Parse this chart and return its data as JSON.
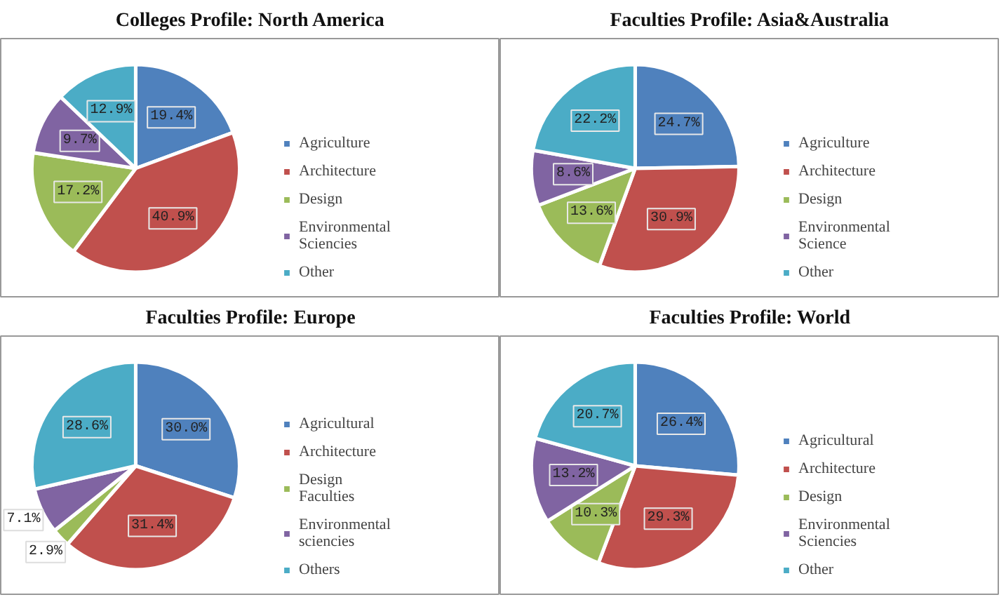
{
  "chart_data": [
    {
      "type": "pie",
      "title": "Colleges Profile: North America",
      "categories": [
        "Agriculture",
        "Architecture",
        "Design",
        "Environmental Sciencies",
        "Other"
      ],
      "values": [
        19.4,
        40.9,
        17.2,
        9.7,
        12.9
      ],
      "value_labels": [
        "19.4%",
        "40.9%",
        "17.2%",
        "9.7%",
        "12.9%"
      ],
      "colors": [
        "#4f81bd",
        "#c0504d",
        "#9bbb59",
        "#8064a2",
        "#4bacc6"
      ],
      "legend": "right"
    },
    {
      "type": "pie",
      "title": "Faculties Profile: Asia&Australia",
      "categories": [
        "Agriculture",
        "Architecture",
        "Design",
        "Environmental Science",
        "Other"
      ],
      "values": [
        24.7,
        30.9,
        13.6,
        8.6,
        22.2
      ],
      "value_labels": [
        "24.7%",
        "30.9%",
        "13.6%",
        "8.6%",
        "22.2%"
      ],
      "colors": [
        "#4f81bd",
        "#c0504d",
        "#9bbb59",
        "#8064a2",
        "#4bacc6"
      ],
      "legend": "right"
    },
    {
      "type": "pie",
      "title": "Faculties Profile: Europe",
      "categories": [
        "Agricultural",
        "Architecture",
        "Design Faculties",
        "Environmental sciencies",
        "Others"
      ],
      "values": [
        30.0,
        31.4,
        2.9,
        7.1,
        28.6
      ],
      "value_labels": [
        "30.0%",
        "31.4%",
        "2.9%",
        "7.1%",
        "28.6%"
      ],
      "colors": [
        "#4f81bd",
        "#c0504d",
        "#9bbb59",
        "#8064a2",
        "#4bacc6"
      ],
      "legend": "right"
    },
    {
      "type": "pie",
      "title": "Faculties Profile: World",
      "categories": [
        "Agricultural",
        "Architecture",
        "Design",
        "Environmental Sciencies",
        "Other"
      ],
      "values": [
        26.4,
        29.3,
        10.3,
        13.2,
        20.7
      ],
      "value_labels": [
        "26.4%",
        "29.3%",
        "10.3%",
        "13.2%",
        "20.7%"
      ],
      "colors": [
        "#4f81bd",
        "#c0504d",
        "#9bbb59",
        "#8064a2",
        "#4bacc6"
      ],
      "legend": "right"
    }
  ]
}
